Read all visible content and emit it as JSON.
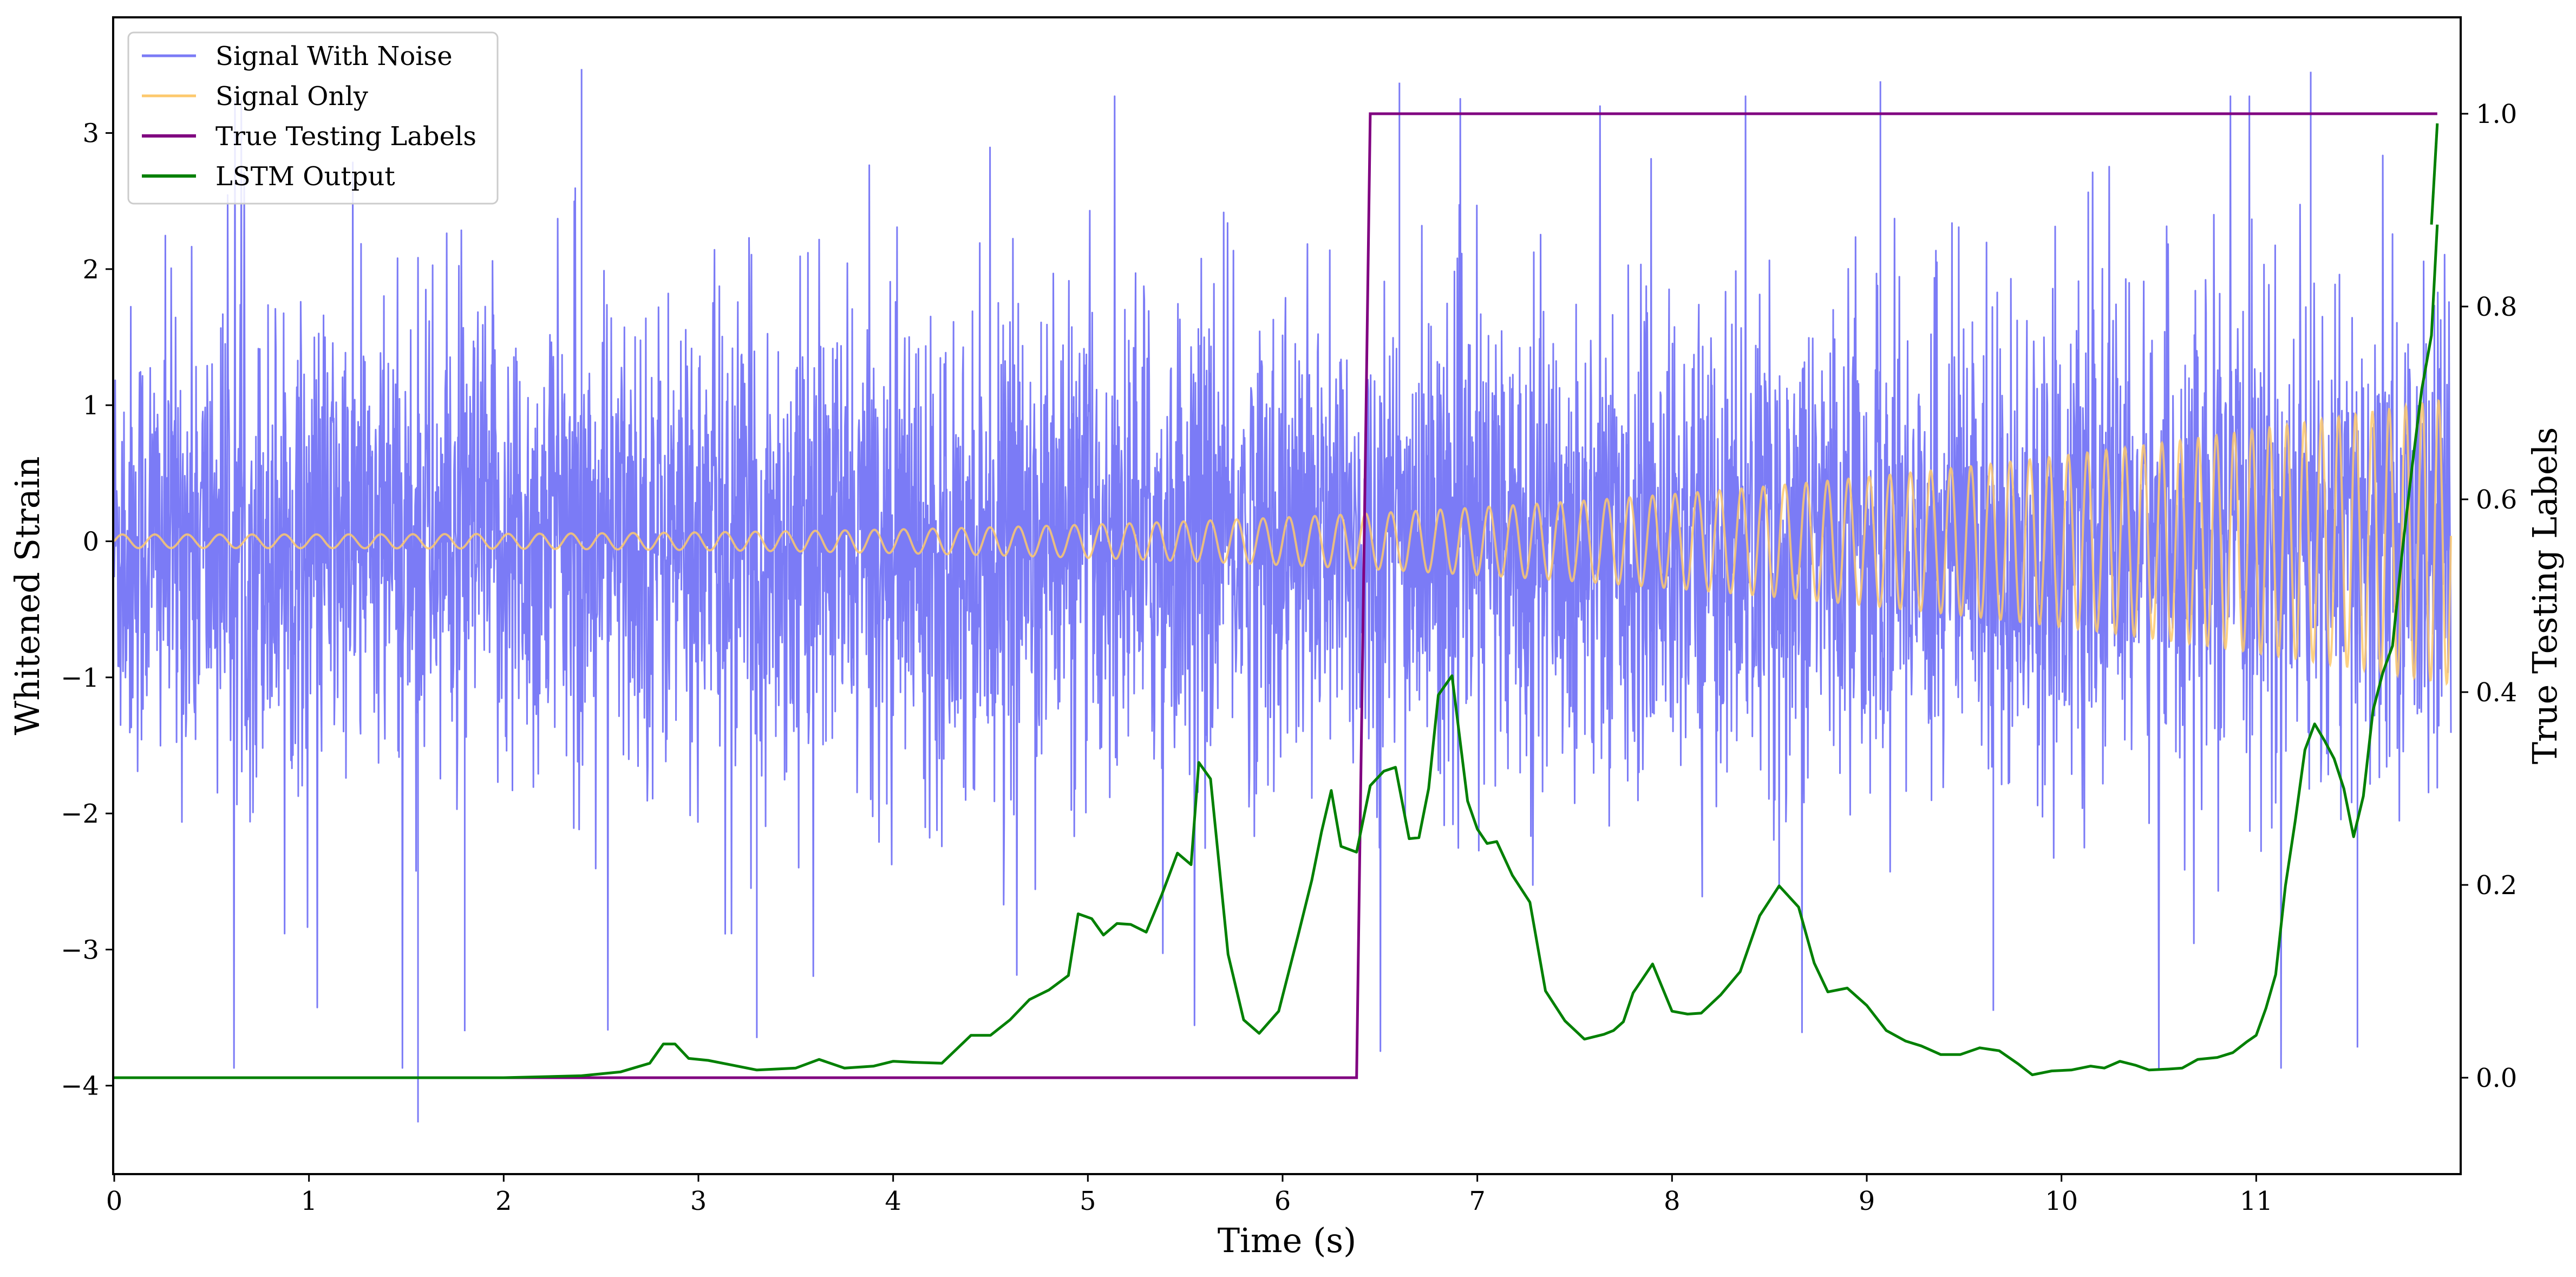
{
  "chart_data": {
    "type": "line",
    "title": "",
    "xlabel": "Time (s)",
    "ylabel": "Whitened Strain",
    "ylabel_right": "True Testing Labels",
    "xlim": [
      0,
      12
    ],
    "ylim": [
      -4.65,
      3.85
    ],
    "ylim_right": [
      -0.1,
      1.1
    ],
    "x_ticks": [
      0,
      1,
      2,
      3,
      4,
      5,
      6,
      7,
      8,
      9,
      10,
      11
    ],
    "x_tick_labels": [
      "0",
      "1",
      "2",
      "3",
      "4",
      "5",
      "6",
      "7",
      "8",
      "9",
      "10",
      "11"
    ],
    "y_ticks": [
      -4,
      -3,
      -2,
      -1,
      0,
      1,
      2,
      3
    ],
    "y_tick_labels": [
      "−4",
      "−3",
      "−2",
      "−1",
      "0",
      "1",
      "2",
      "3"
    ],
    "y_right_ticks": [
      0.0,
      0.2,
      0.4,
      0.6,
      0.8,
      1.0
    ],
    "y_right_tick_labels": [
      "0.0",
      "0.2",
      "0.4",
      "0.6",
      "0.8",
      "1.0"
    ],
    "grid": false,
    "legend_position": "top-left",
    "series": [
      {
        "name": "Signal With Noise",
        "axis": "left",
        "color": "#7b7bf6",
        "style": "dense noise",
        "x_range": [
          0,
          12
        ],
        "typical_amplitude": 1.6,
        "y_extremes": [
          -4.27,
          3.47
        ]
      },
      {
        "name": "Signal Only",
        "axis": "left",
        "color": "#fdc96d",
        "style": "chirp",
        "x_range": [
          0,
          12
        ],
        "amplitude_start": 0.05,
        "amplitude_end": 1.05,
        "frequency_start_hz": 6,
        "frequency_end_hz": 12
      },
      {
        "name": "True Testing Labels",
        "axis": "right",
        "color": "#800080",
        "x": [
          0,
          6.38,
          6.45,
          11.93
        ],
        "y": [
          0,
          0,
          1,
          1
        ]
      },
      {
        "name": "LSTM Output",
        "axis": "right",
        "color": "#008000",
        "x": [
          0,
          1,
          1.5,
          2.0,
          2.4,
          2.6,
          2.75,
          2.82,
          2.88,
          2.95,
          3.05,
          3.15,
          3.3,
          3.5,
          3.62,
          3.75,
          3.9,
          4.0,
          4.1,
          4.25,
          4.4,
          4.5,
          4.6,
          4.7,
          4.8,
          4.9,
          4.95,
          5.02,
          5.08,
          5.15,
          5.22,
          5.3,
          5.38,
          5.46,
          5.53,
          5.57,
          5.63,
          5.72,
          5.8,
          5.88,
          5.98,
          6.08,
          6.15,
          6.2,
          6.25,
          6.3,
          6.38,
          6.45,
          6.52,
          6.58,
          6.65,
          6.7,
          6.75,
          6.8,
          6.87,
          6.95,
          7.0,
          7.05,
          7.1,
          7.18,
          7.27,
          7.35,
          7.45,
          7.55,
          7.65,
          7.7,
          7.75,
          7.8,
          7.9,
          8.0,
          8.08,
          8.15,
          8.25,
          8.35,
          8.45,
          8.55,
          8.65,
          8.73,
          8.8,
          8.9,
          9.0,
          9.1,
          9.2,
          9.28,
          9.38,
          9.48,
          9.58,
          9.68,
          9.78,
          9.85,
          9.95,
          10.05,
          10.15,
          10.22,
          10.3,
          10.38,
          10.45,
          10.55,
          10.62,
          10.7,
          10.8,
          10.88,
          10.95,
          11.0,
          11.05,
          11.1,
          11.15,
          11.2,
          11.25,
          11.3,
          11.35,
          11.4,
          11.45,
          11.5,
          11.55,
          11.6,
          11.65,
          11.7,
          11.75,
          11.8,
          11.85,
          11.9,
          11.93
        ],
        "y": [
          0.0,
          0.0,
          0.0,
          0.0,
          0.002,
          0.006,
          0.015,
          0.035,
          0.035,
          0.02,
          0.018,
          0.014,
          0.008,
          0.01,
          0.019,
          0.01,
          0.012,
          0.017,
          0.016,
          0.015,
          0.044,
          0.044,
          0.06,
          0.081,
          0.091,
          0.106,
          0.17,
          0.165,
          0.148,
          0.16,
          0.159,
          0.151,
          0.19,
          0.233,
          0.221,
          0.327,
          0.31,
          0.128,
          0.06,
          0.046,
          0.069,
          0.148,
          0.205,
          0.255,
          0.298,
          0.24,
          0.234,
          0.303,
          0.318,
          0.322,
          0.248,
          0.249,
          0.3,
          0.397,
          0.417,
          0.287,
          0.258,
          0.243,
          0.245,
          0.21,
          0.182,
          0.09,
          0.059,
          0.04,
          0.045,
          0.049,
          0.058,
          0.088,
          0.118,
          0.069,
          0.066,
          0.067,
          0.086,
          0.11,
          0.168,
          0.199,
          0.177,
          0.119,
          0.089,
          0.093,
          0.075,
          0.049,
          0.038,
          0.033,
          0.024,
          0.024,
          0.031,
          0.028,
          0.014,
          0.003,
          0.007,
          0.008,
          0.012,
          0.01,
          0.017,
          0.013,
          0.008,
          0.009,
          0.01,
          0.019,
          0.021,
          0.026,
          0.037,
          0.044,
          0.072,
          0.107,
          0.199,
          0.266,
          0.34,
          0.367,
          0.35,
          0.331,
          0.3,
          0.25,
          0.292,
          0.381,
          0.42,
          0.448,
          0.546,
          0.633,
          0.714,
          0.77,
          0.885
        ],
        "y_note": "LSTM output in units of the right axis (probability)"
      }
    ]
  }
}
